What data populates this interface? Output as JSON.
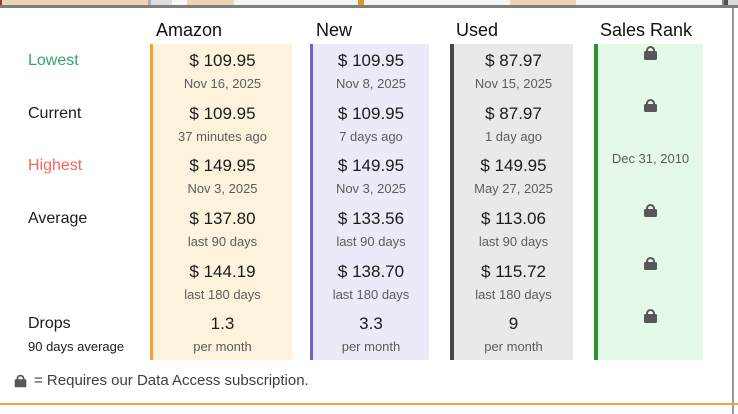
{
  "table": {
    "row_labels": [
      {
        "text": "Lowest",
        "color": "#33A567"
      },
      {
        "text": "Current",
        "color": "#1B1B1B"
      },
      {
        "text": "Highest",
        "color": "#F4695A"
      },
      {
        "text": "Average",
        "color": "#1B1B1B"
      },
      {
        "text": "",
        "color": "#1B1B1B"
      },
      {
        "text": "Drops",
        "color": "#1B1B1B",
        "sub": "90 days average"
      }
    ],
    "columns": [
      {
        "header": "Amazon",
        "accent": "#F7A228",
        "bg": "#FDF3DC",
        "cells": [
          {
            "main": "$ 109.95",
            "sub": "Nov 16, 2025"
          },
          {
            "main": "$ 109.95",
            "sub": "37 minutes ago"
          },
          {
            "main": "$ 149.95",
            "sub": "Nov 3, 2025"
          },
          {
            "main": "$ 137.80",
            "sub": "last 90 days"
          },
          {
            "main": "$ 144.19",
            "sub": "last 180 days"
          },
          {
            "main": "1.3",
            "sub": "per month"
          }
        ]
      },
      {
        "header": "New",
        "accent": "#6A64CB",
        "bg": "#EAEAF8",
        "cells": [
          {
            "main": "$ 109.95",
            "sub": "Nov 8, 2025"
          },
          {
            "main": "$ 109.95",
            "sub": "7 days ago"
          },
          {
            "main": "$ 149.95",
            "sub": "Nov 3, 2025"
          },
          {
            "main": "$ 133.56",
            "sub": "last 90 days"
          },
          {
            "main": "$ 138.70",
            "sub": "last 180 days"
          },
          {
            "main": "3.3",
            "sub": "per month"
          }
        ]
      },
      {
        "header": "Used",
        "accent": "#484848",
        "bg": "#E9E9E9",
        "cells": [
          {
            "main": "$ 87.97",
            "sub": "Nov 15, 2025"
          },
          {
            "main": "$ 87.97",
            "sub": "1 day ago"
          },
          {
            "main": "$ 149.95",
            "sub": "May 27, 2025"
          },
          {
            "main": "$ 113.06",
            "sub": "last 90 days"
          },
          {
            "main": "$ 115.72",
            "sub": "last 180 days"
          },
          {
            "main": "9",
            "sub": "per month"
          }
        ]
      },
      {
        "header": "Sales Rank",
        "accent": "#2C9330",
        "bg": "#E4F9E8",
        "cells": [
          {
            "lock": true
          },
          {
            "lock": true
          },
          {
            "main": "",
            "sub": "Dec 31, 2010"
          },
          {
            "lock": true
          },
          {
            "lock": true
          },
          {
            "lock": true
          }
        ]
      }
    ]
  },
  "icons": {
    "lock": "padlock"
  },
  "footer": {
    "note": "= Requires our Data Access subscription."
  }
}
